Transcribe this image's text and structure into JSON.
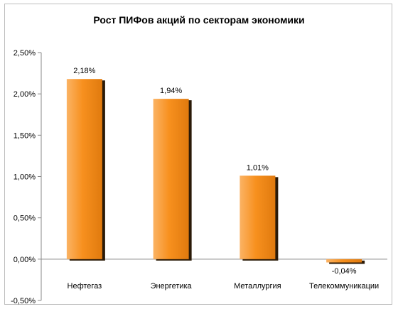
{
  "chart_data": {
    "type": "bar",
    "title": "Рост ПИФов акций по секторам экономики",
    "categories": [
      "Нефтегаз",
      "Энергетика",
      "Металлургия",
      "Телекоммуникации"
    ],
    "values": [
      2.18,
      1.94,
      1.01,
      -0.04
    ],
    "value_labels": [
      "2,18%",
      "1,94%",
      "1,01%",
      "-0,04%"
    ],
    "y_ticks": [
      -0.5,
      0,
      0.5,
      1.0,
      1.5,
      2.0,
      2.5
    ],
    "y_tick_labels": [
      "-0,50%",
      "0,00%",
      "0,50%",
      "1,00%",
      "1,50%",
      "2,00%",
      "2,50%"
    ],
    "ylim": [
      -0.5,
      2.5
    ],
    "xlabel": "",
    "ylabel": "",
    "grid": false,
    "legend": "none",
    "colors": {
      "bar_light": "#fbb364",
      "bar_mid": "#f7901e",
      "bar_dark": "#e07a0e",
      "shadow": "#2a1a08",
      "axis": "#888888"
    }
  }
}
